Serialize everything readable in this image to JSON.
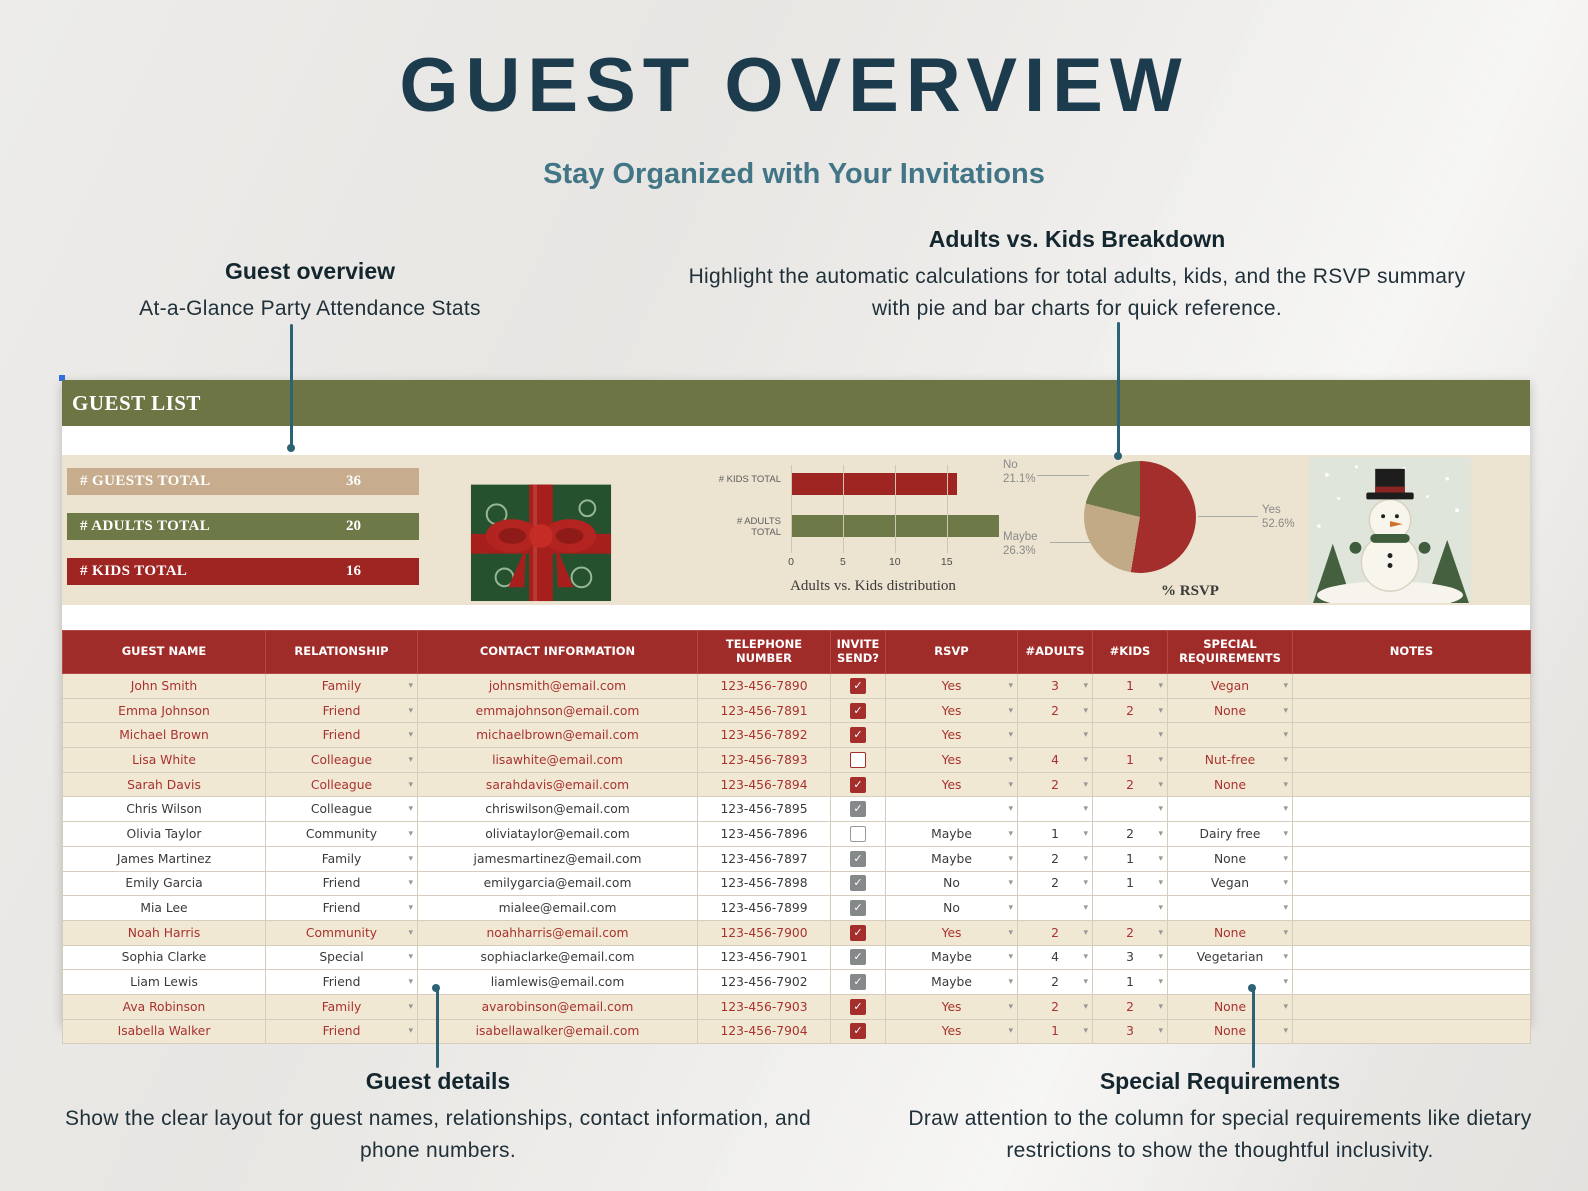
{
  "page": {
    "title": "GUEST OVERVIEW",
    "subtitle": "Stay Organized with Your Invitations"
  },
  "annotations": {
    "guest_overview": {
      "heading": "Guest overview",
      "body": "At-a-Glance Party Attendance Stats"
    },
    "breakdown": {
      "heading": "Adults vs. Kids Breakdown",
      "body": "Highlight the automatic calculations for total adults, kids, and the RSVP summary with pie and bar charts for quick reference."
    },
    "guest_details": {
      "heading": "Guest details",
      "body": "Show the clear layout for guest names, relationships, contact information, and phone numbers."
    },
    "special_requirements": {
      "heading": "Special Requirements",
      "body": "Draw attention to the column for special requirements like dietary restrictions to show the thoughtful inclusivity."
    }
  },
  "sheet": {
    "title": "GUEST LIST",
    "stats": [
      {
        "label": "# GUESTS TOTAL",
        "value": "36",
        "color": "#c7ad8d"
      },
      {
        "label": "# ADULTS TOTAL",
        "value": "20",
        "color": "#6e7948"
      },
      {
        "label": "# KIDS TOTAL",
        "value": "16",
        "color": "#9e2522"
      }
    ]
  },
  "chart_data": [
    {
      "type": "bar",
      "orientation": "horizontal",
      "title": "Adults vs. Kids distribution",
      "categories": [
        "# KIDS TOTAL",
        "# ADULTS TOTAL"
      ],
      "values": [
        16,
        20
      ],
      "colors": [
        "#9e2522",
        "#6e7948"
      ],
      "xlabel": "",
      "ylabel": "",
      "xlim": [
        0,
        21
      ],
      "xticks": [
        0,
        5,
        10,
        15
      ],
      "grid": true,
      "legend": false
    },
    {
      "type": "pie",
      "title": "% RSVP",
      "labels": [
        "Yes",
        "Maybe",
        "No"
      ],
      "values": [
        52.6,
        26.3,
        21.1
      ],
      "colors": [
        "#a32e2c",
        "#c3aa87",
        "#6e7948"
      ],
      "callouts": [
        {
          "label": "No",
          "pct": "21.1%"
        },
        {
          "label": "Maybe",
          "pct": "26.3%"
        },
        {
          "label": "Yes",
          "pct": "52.6%"
        }
      ]
    }
  ],
  "glyphs": {
    "dropdown_arrow": "▾",
    "checkmark": "✓"
  },
  "icons": {
    "gift": "christmas-gift-illustration",
    "snowman": "snowman-illustration"
  },
  "table": {
    "columns": [
      "GUEST NAME",
      "RELATIONSHIP",
      "CONTACT INFORMATION",
      "TELEPHONE NUMBER",
      "INVITE SEND?",
      "RSVP",
      "#ADULTS",
      "#KIDS",
      "SPECIAL REQUIREMENTS",
      "NOTES"
    ],
    "rows": [
      {
        "name": "John Smith",
        "relationship": "Family",
        "contact": "johnsmith@email.com",
        "phone": "123-456-7890",
        "invite_color": "red",
        "invite_checked": true,
        "rsvp": "Yes",
        "adults": "3",
        "kids": "1",
        "special": "Vegan",
        "notes": "",
        "highlight": true
      },
      {
        "name": "Emma Johnson",
        "relationship": "Friend",
        "contact": "emmajohnson@email.com",
        "phone": "123-456-7891",
        "invite_color": "red",
        "invite_checked": true,
        "rsvp": "Yes",
        "adults": "2",
        "kids": "2",
        "special": "None",
        "notes": "",
        "highlight": true
      },
      {
        "name": "Michael Brown",
        "relationship": "Friend",
        "contact": "michaelbrown@email.com",
        "phone": "123-456-7892",
        "invite_color": "red",
        "invite_checked": true,
        "rsvp": "Yes",
        "adults": "",
        "kids": "",
        "special": "",
        "notes": "",
        "highlight": true
      },
      {
        "name": "Lisa White",
        "relationship": "Colleague",
        "contact": "lisawhite@email.com",
        "phone": "123-456-7893",
        "invite_color": "red",
        "invite_checked": false,
        "rsvp": "Yes",
        "adults": "4",
        "kids": "1",
        "special": "Nut-free",
        "notes": "",
        "highlight": true
      },
      {
        "name": "Sarah Davis",
        "relationship": "Colleague",
        "contact": "sarahdavis@email.com",
        "phone": "123-456-7894",
        "invite_color": "red",
        "invite_checked": true,
        "rsvp": "Yes",
        "adults": "2",
        "kids": "2",
        "special": "None",
        "notes": "",
        "highlight": true
      },
      {
        "name": "Chris Wilson",
        "relationship": "Colleague",
        "contact": "chriswilson@email.com",
        "phone": "123-456-7895",
        "invite_color": "gray",
        "invite_checked": true,
        "rsvp": "",
        "adults": "",
        "kids": "",
        "special": "",
        "notes": "",
        "highlight": false
      },
      {
        "name": "Olivia Taylor",
        "relationship": "Community",
        "contact": "oliviataylor@email.com",
        "phone": "123-456-7896",
        "invite_color": "gray",
        "invite_checked": false,
        "rsvp": "Maybe",
        "adults": "1",
        "kids": "2",
        "special": "Dairy free",
        "notes": "",
        "highlight": false
      },
      {
        "name": "James Martinez",
        "relationship": "Family",
        "contact": "jamesmartinez@email.com",
        "phone": "123-456-7897",
        "invite_color": "gray",
        "invite_checked": true,
        "rsvp": "Maybe",
        "adults": "2",
        "kids": "1",
        "special": "None",
        "notes": "",
        "highlight": false
      },
      {
        "name": "Emily Garcia",
        "relationship": "Friend",
        "contact": "emilygarcia@email.com",
        "phone": "123-456-7898",
        "invite_color": "gray",
        "invite_checked": true,
        "rsvp": "No",
        "adults": "2",
        "kids": "1",
        "special": "Vegan",
        "notes": "",
        "highlight": false
      },
      {
        "name": "Mia Lee",
        "relationship": "Friend",
        "contact": "mialee@email.com",
        "phone": "123-456-7899",
        "invite_color": "gray",
        "invite_checked": true,
        "rsvp": "No",
        "adults": "",
        "kids": "",
        "special": "",
        "notes": "",
        "highlight": false
      },
      {
        "name": "Noah Harris",
        "relationship": "Community",
        "contact": "noahharris@email.com",
        "phone": "123-456-7900",
        "invite_color": "red",
        "invite_checked": true,
        "rsvp": "Yes",
        "adults": "2",
        "kids": "2",
        "special": "None",
        "notes": "",
        "highlight": true
      },
      {
        "name": "Sophia Clarke",
        "relationship": "Special",
        "contact": "sophiaclarke@email.com",
        "phone": "123-456-7901",
        "invite_color": "gray",
        "invite_checked": true,
        "rsvp": "Maybe",
        "adults": "4",
        "kids": "3",
        "special": "Vegetarian",
        "notes": "",
        "highlight": false
      },
      {
        "name": "Liam Lewis",
        "relationship": "Friend",
        "contact": "liamlewis@email.com",
        "phone": "123-456-7902",
        "invite_color": "gray",
        "invite_checked": true,
        "rsvp": "Maybe",
        "adults": "2",
        "kids": "1",
        "special": "",
        "notes": "",
        "highlight": false
      },
      {
        "name": "Ava Robinson",
        "relationship": "Family",
        "contact": "avarobinson@email.com",
        "phone": "123-456-7903",
        "invite_color": "red",
        "invite_checked": true,
        "rsvp": "Yes",
        "adults": "2",
        "kids": "2",
        "special": "None",
        "notes": "",
        "highlight": true
      },
      {
        "name": "Isabella Walker",
        "relationship": "Friend",
        "contact": "isabellawalker@email.com",
        "phone": "123-456-7904",
        "invite_color": "red",
        "invite_checked": true,
        "rsvp": "Yes",
        "adults": "1",
        "kids": "3",
        "special": "None",
        "notes": "",
        "highlight": true
      }
    ]
  }
}
